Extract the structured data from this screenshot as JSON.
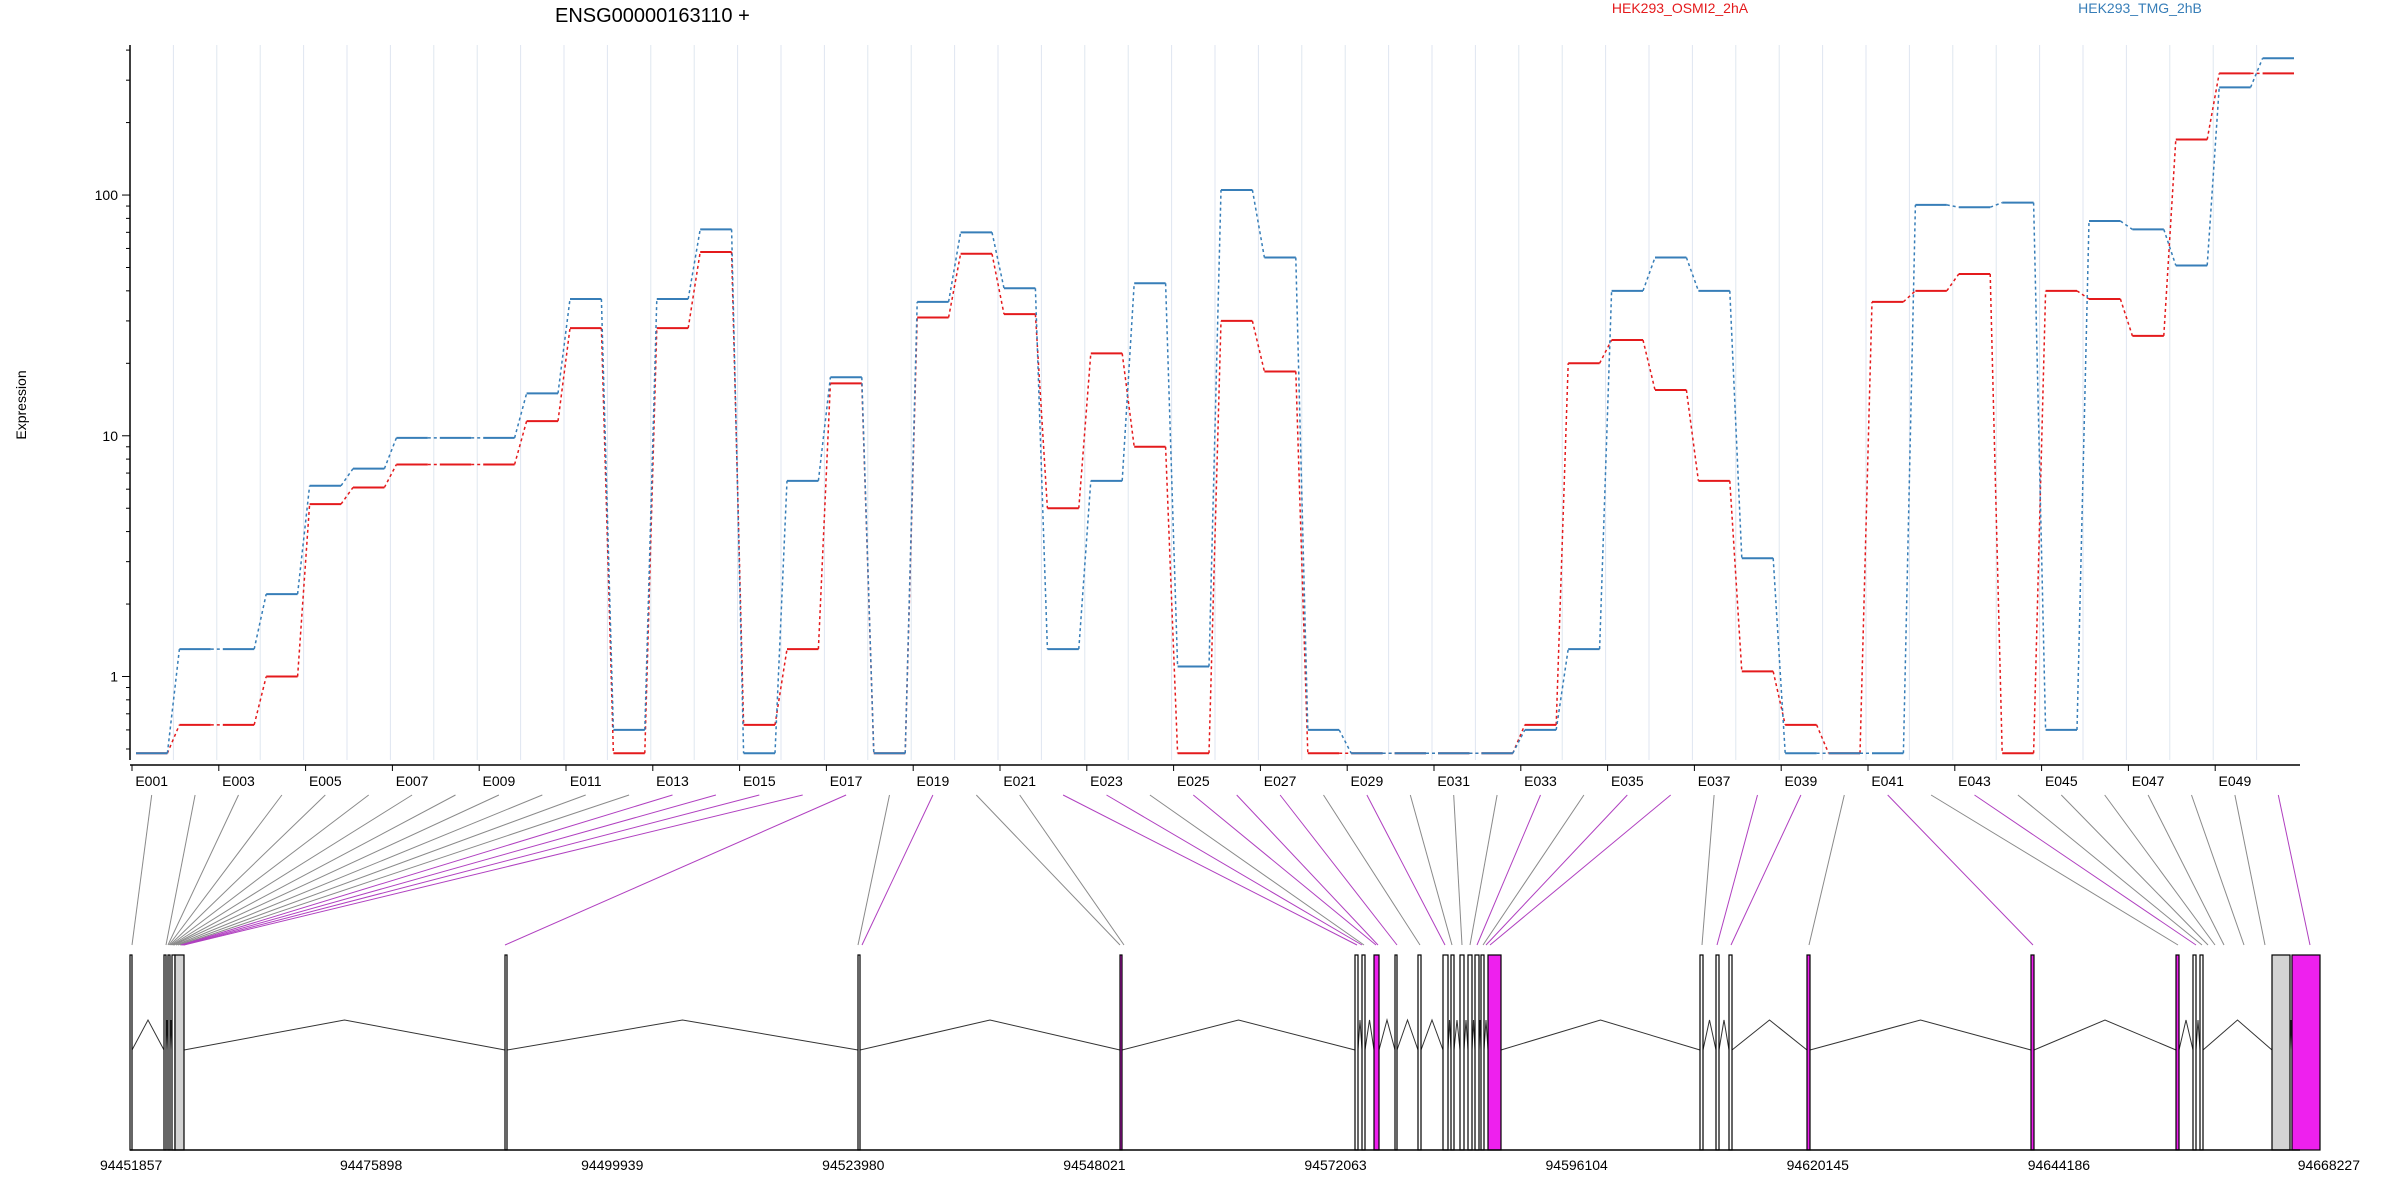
{
  "chart_data": {
    "type": "line",
    "title": "ENSG00000163110 +",
    "xlabel": "",
    "ylabel": "Expression",
    "y_scale": "log",
    "ylim": [
      0.45,
      420
    ],
    "y_ticks": [
      {
        "value": 1,
        "label": "1"
      },
      {
        "value": 10,
        "label": "10"
      },
      {
        "value": 100,
        "label": "100"
      }
    ],
    "grid": true,
    "legend_placement": "top",
    "categories": [
      "E001",
      "E002",
      "E003",
      "E004",
      "E005",
      "E006",
      "E007",
      "E008",
      "E009",
      "E010",
      "E011",
      "E012",
      "E013",
      "E014",
      "E015",
      "E016",
      "E017",
      "E018",
      "E019",
      "E020",
      "E021",
      "E022",
      "E023",
      "E024",
      "E025",
      "E026",
      "E027",
      "E028",
      "E029",
      "E030",
      "E031",
      "E032",
      "E033",
      "E034",
      "E035",
      "E036",
      "E037",
      "E038",
      "E039",
      "E040",
      "E041",
      "E042",
      "E043",
      "E044",
      "E045",
      "E046",
      "E047",
      "E048",
      "E049",
      "E050"
    ],
    "category_tick_labels": [
      "E001",
      "E003",
      "E005",
      "E007",
      "E009",
      "E011",
      "E013",
      "E015",
      "E017",
      "E019",
      "E021",
      "E023",
      "E025",
      "E027",
      "E029",
      "E031",
      "E033",
      "E035",
      "E037",
      "E039",
      "E041",
      "E043",
      "E045",
      "E047",
      "E049"
    ],
    "series": [
      {
        "name": "HEK293_OSMI2_2hA",
        "color": "#e41a1c",
        "values": [
          0.48,
          0.63,
          0.63,
          1.0,
          5.2,
          6.1,
          7.6,
          7.6,
          7.6,
          11.5,
          28,
          0.48,
          28,
          58,
          0.63,
          1.3,
          16.5,
          0.48,
          31,
          57,
          32,
          5.0,
          22,
          9.0,
          0.48,
          30,
          18.5,
          0.48,
          0.48,
          0.48,
          0.48,
          0.48,
          0.63,
          20,
          25,
          15.5,
          6.5,
          1.05,
          0.63,
          0.48,
          36,
          40,
          47,
          0.48,
          40,
          37,
          26,
          170,
          320,
          320
        ]
      },
      {
        "name": "HEK293_TMG_2hB",
        "color": "#377eb8",
        "values": [
          0.48,
          1.3,
          1.3,
          2.2,
          6.2,
          7.3,
          9.8,
          9.8,
          9.8,
          15,
          37,
          0.6,
          37,
          72,
          0.48,
          6.5,
          17.5,
          0.48,
          36,
          70,
          41,
          1.3,
          6.5,
          43,
          1.1,
          105,
          55,
          0.6,
          0.48,
          0.48,
          0.48,
          0.48,
          0.6,
          1.3,
          40,
          55,
          40,
          3.1,
          0.48,
          0.48,
          0.48,
          91,
          89,
          93,
          0.6,
          78,
          72,
          51,
          280,
          370
        ]
      }
    ],
    "genomic_axis_labels": [
      "94451857",
      "94475898",
      "94499939",
      "94523980",
      "94548021",
      "94572063",
      "94596104",
      "94620145",
      "94644186",
      "94668227"
    ],
    "genomic_range": [
      94451857,
      94668227
    ]
  },
  "colors": {
    "axis": "#000000",
    "grid": "#dfe6f0",
    "exon_fill": "#d3d3d3",
    "exon_highlight": "#ee20ee",
    "connector": "#8a8a8a",
    "connector_highlight": "#b040c0"
  }
}
